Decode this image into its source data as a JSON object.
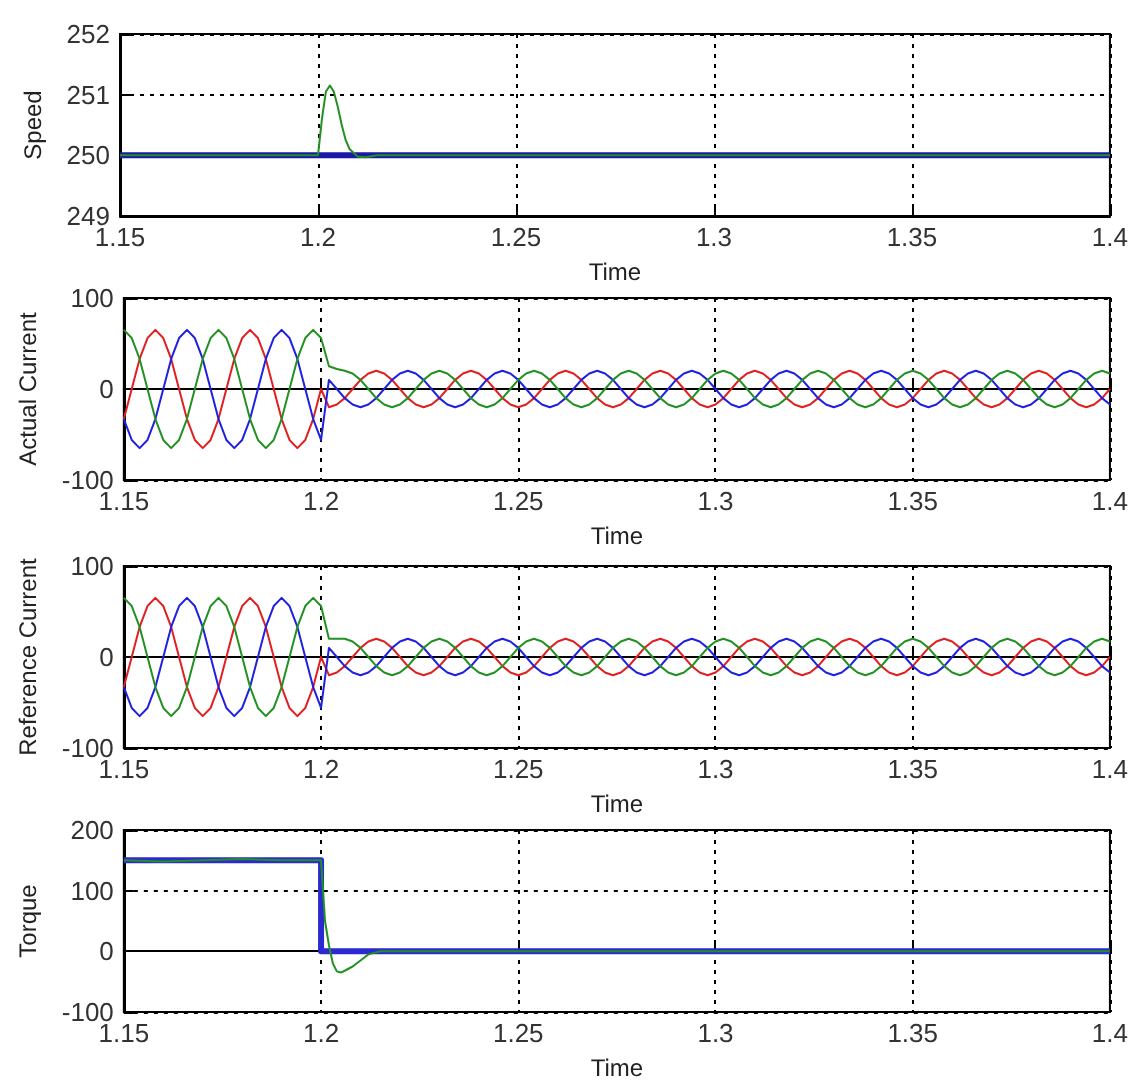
{
  "chart_data": [
    {
      "type": "line",
      "xlabel": "Time",
      "ylabel": "Speed",
      "xlim": [
        1.15,
        1.4
      ],
      "xticks": [
        1.15,
        1.2,
        1.25,
        1.3,
        1.35,
        1.4
      ],
      "ylim": [
        249,
        252
      ],
      "yticks": [
        249,
        250,
        251,
        252
      ],
      "grid": true,
      "series": [
        {
          "color": "#1a1aa6",
          "x": [
            1.15,
            1.4
          ],
          "values": [
            250,
            250
          ]
        },
        {
          "color": "#229022",
          "x": [
            1.15,
            1.2,
            1.201,
            1.202,
            1.203,
            1.204,
            1.205,
            1.206,
            1.207,
            1.208,
            1.21,
            1.212,
            1.215,
            1.22,
            1.4
          ],
          "values": [
            250,
            250,
            250.6,
            251.05,
            251.15,
            251.05,
            250.8,
            250.5,
            250.25,
            250.1,
            249.98,
            249.97,
            250,
            250,
            250
          ]
        }
      ]
    },
    {
      "type": "line",
      "xlabel": "Time",
      "ylabel": "Actual Current",
      "xlim": [
        1.15,
        1.4
      ],
      "xticks": [
        1.15,
        1.2,
        1.25,
        1.3,
        1.35,
        1.4
      ],
      "ylim": [
        -100,
        100
      ],
      "yticks": [
        -100,
        0,
        100
      ],
      "grid": true,
      "x": [
        1.15,
        1.152,
        1.154,
        1.156,
        1.158,
        1.16,
        1.162,
        1.164,
        1.166,
        1.168,
        1.17,
        1.172,
        1.174,
        1.176,
        1.178,
        1.18,
        1.182,
        1.184,
        1.186,
        1.188,
        1.19,
        1.192,
        1.194,
        1.196,
        1.198,
        1.2,
        1.202,
        1.204,
        1.206,
        1.208,
        1.21,
        1.212,
        1.214,
        1.216,
        1.218,
        1.22,
        1.222,
        1.224,
        1.226,
        1.228,
        1.23,
        1.232,
        1.234,
        1.236,
        1.238,
        1.24,
        1.242,
        1.244,
        1.246,
        1.248,
        1.25,
        1.252,
        1.254,
        1.256,
        1.258,
        1.26,
        1.262,
        1.264,
        1.266,
        1.268,
        1.27,
        1.272,
        1.274,
        1.276,
        1.278,
        1.28,
        1.282,
        1.284,
        1.286,
        1.288,
        1.29,
        1.292,
        1.294,
        1.296,
        1.298,
        1.3,
        1.302,
        1.304,
        1.306,
        1.308,
        1.31,
        1.312,
        1.314,
        1.316,
        1.318,
        1.32,
        1.322,
        1.324,
        1.326,
        1.328,
        1.33,
        1.332,
        1.334,
        1.336,
        1.338,
        1.34,
        1.342,
        1.344,
        1.346,
        1.348,
        1.35,
        1.352,
        1.354,
        1.356,
        1.358,
        1.36,
        1.362,
        1.364,
        1.366,
        1.368,
        1.37,
        1.372,
        1.374,
        1.376,
        1.378,
        1.38,
        1.382,
        1.384,
        1.386,
        1.388,
        1.39,
        1.392,
        1.394,
        1.396,
        1.398,
        1.4
      ],
      "series": [
        {
          "color": "#e02020",
          "values": [
            -33,
            0,
            33,
            56,
            65,
            56,
            33,
            0,
            -33,
            -56,
            -65,
            -56,
            -33,
            0,
            33,
            56,
            65,
            56,
            33,
            0,
            -33,
            -56,
            -65,
            -56,
            -33,
            0,
            -20,
            -17,
            -10,
            0,
            10,
            17,
            20,
            17,
            10,
            0,
            -10,
            -17,
            -20,
            -17,
            -10,
            0,
            10,
            17,
            20,
            17,
            10,
            0,
            -10,
            -17,
            -20,
            -17,
            -10,
            0,
            10,
            17,
            20,
            17,
            10,
            0,
            -10,
            -17,
            -20,
            -17,
            -10,
            0,
            10,
            17,
            20,
            17,
            10,
            0,
            -10,
            -17,
            -20,
            -17,
            -10,
            0,
            10,
            17,
            20,
            17,
            10,
            0,
            -10,
            -17,
            -20,
            -17,
            -10,
            0,
            10,
            17,
            20,
            17,
            10,
            0,
            -10,
            -17,
            -20,
            -17,
            -10,
            0,
            10,
            17,
            20,
            17,
            10,
            0,
            -10,
            -17,
            -20,
            -17,
            -10,
            0,
            10,
            17,
            20,
            17,
            10,
            0,
            -10,
            -17,
            -20,
            -17,
            -10,
            0
          ]
        },
        {
          "color": "#2020e0",
          "values": [
            -33,
            -56,
            -65,
            -56,
            -33,
            0,
            33,
            56,
            65,
            56,
            33,
            0,
            -33,
            -56,
            -65,
            -56,
            -33,
            0,
            33,
            56,
            65,
            56,
            33,
            0,
            -33,
            -56,
            10,
            0,
            -10,
            -17,
            -20,
            -17,
            -10,
            0,
            10,
            17,
            20,
            17,
            10,
            0,
            -10,
            -17,
            -20,
            -17,
            -10,
            0,
            10,
            17,
            20,
            17,
            10,
            0,
            -10,
            -17,
            -20,
            -17,
            -10,
            0,
            10,
            17,
            20,
            17,
            10,
            0,
            -10,
            -17,
            -20,
            -17,
            -10,
            0,
            10,
            17,
            20,
            17,
            10,
            0,
            -10,
            -17,
            -20,
            -17,
            -10,
            0,
            10,
            17,
            20,
            17,
            10,
            0,
            -10,
            -17,
            -20,
            -17,
            -10,
            0,
            10,
            17,
            20,
            17,
            10,
            0,
            -10,
            -17,
            -20,
            -17,
            -10,
            0,
            10,
            17,
            20,
            17,
            10,
            0,
            -10,
            -17,
            -20,
            -17,
            -10,
            0,
            10,
            17,
            20,
            17,
            10,
            0,
            -10,
            -17
          ]
        },
        {
          "color": "#229022",
          "values": [
            65,
            56,
            33,
            0,
            -33,
            -56,
            -65,
            -56,
            -33,
            0,
            33,
            56,
            65,
            56,
            33,
            0,
            -33,
            -56,
            -65,
            -56,
            -33,
            0,
            33,
            56,
            65,
            56,
            25,
            22,
            20,
            17,
            10,
            0,
            -10,
            -17,
            -20,
            -17,
            -10,
            0,
            10,
            17,
            20,
            17,
            10,
            0,
            -10,
            -17,
            -20,
            -17,
            -10,
            0,
            10,
            17,
            20,
            17,
            10,
            0,
            -10,
            -17,
            -20,
            -17,
            -10,
            0,
            10,
            17,
            20,
            17,
            10,
            0,
            -10,
            -17,
            -20,
            -17,
            -10,
            0,
            10,
            17,
            20,
            17,
            10,
            0,
            -10,
            -17,
            -20,
            -17,
            -10,
            0,
            10,
            17,
            20,
            17,
            10,
            0,
            -10,
            -17,
            -20,
            -17,
            -10,
            0,
            10,
            17,
            20,
            17,
            10,
            0,
            -10,
            -17,
            -20,
            -17,
            -10,
            0,
            10,
            17,
            20,
            17,
            10,
            0,
            -10,
            -17,
            -20,
            -17,
            -10,
            0,
            10,
            17,
            20,
            17
          ]
        }
      ]
    },
    {
      "type": "line",
      "xlabel": "Time",
      "ylabel": "Reference Current",
      "xlim": [
        1.15,
        1.4
      ],
      "xticks": [
        1.15,
        1.2,
        1.25,
        1.3,
        1.35,
        1.4
      ],
      "ylim": [
        -100,
        100
      ],
      "yticks": [
        -100,
        0,
        100
      ],
      "grid": true,
      "x": [
        1.15,
        1.152,
        1.154,
        1.156,
        1.158,
        1.16,
        1.162,
        1.164,
        1.166,
        1.168,
        1.17,
        1.172,
        1.174,
        1.176,
        1.178,
        1.18,
        1.182,
        1.184,
        1.186,
        1.188,
        1.19,
        1.192,
        1.194,
        1.196,
        1.198,
        1.2,
        1.202,
        1.204,
        1.206,
        1.208,
        1.21,
        1.212,
        1.214,
        1.216,
        1.218,
        1.22,
        1.222,
        1.224,
        1.226,
        1.228,
        1.23,
        1.232,
        1.234,
        1.236,
        1.238,
        1.24,
        1.242,
        1.244,
        1.246,
        1.248,
        1.25,
        1.252,
        1.254,
        1.256,
        1.258,
        1.26,
        1.262,
        1.264,
        1.266,
        1.268,
        1.27,
        1.272,
        1.274,
        1.276,
        1.278,
        1.28,
        1.282,
        1.284,
        1.286,
        1.288,
        1.29,
        1.292,
        1.294,
        1.296,
        1.298,
        1.3,
        1.302,
        1.304,
        1.306,
        1.308,
        1.31,
        1.312,
        1.314,
        1.316,
        1.318,
        1.32,
        1.322,
        1.324,
        1.326,
        1.328,
        1.33,
        1.332,
        1.334,
        1.336,
        1.338,
        1.34,
        1.342,
        1.344,
        1.346,
        1.348,
        1.35,
        1.352,
        1.354,
        1.356,
        1.358,
        1.36,
        1.362,
        1.364,
        1.366,
        1.368,
        1.37,
        1.372,
        1.374,
        1.376,
        1.378,
        1.38,
        1.382,
        1.384,
        1.386,
        1.388,
        1.39,
        1.392,
        1.394,
        1.396,
        1.398,
        1.4
      ],
      "series": [
        {
          "color": "#e02020",
          "values": [
            -33,
            0,
            33,
            56,
            65,
            56,
            33,
            0,
            -33,
            -56,
            -65,
            -56,
            -33,
            0,
            33,
            56,
            65,
            56,
            33,
            0,
            -33,
            -56,
            -65,
            -56,
            -33,
            0,
            -20,
            -17,
            -10,
            0,
            10,
            17,
            20,
            17,
            10,
            0,
            -10,
            -17,
            -20,
            -17,
            -10,
            0,
            10,
            17,
            20,
            17,
            10,
            0,
            -10,
            -17,
            -20,
            -17,
            -10,
            0,
            10,
            17,
            20,
            17,
            10,
            0,
            -10,
            -17,
            -20,
            -17,
            -10,
            0,
            10,
            17,
            20,
            17,
            10,
            0,
            -10,
            -17,
            -20,
            -17,
            -10,
            0,
            10,
            17,
            20,
            17,
            10,
            0,
            -10,
            -17,
            -20,
            -17,
            -10,
            0,
            10,
            17,
            20,
            17,
            10,
            0,
            -10,
            -17,
            -20,
            -17,
            -10,
            0,
            10,
            17,
            20,
            17,
            10,
            0,
            -10,
            -17,
            -20,
            -17,
            -10,
            0,
            10,
            17,
            20,
            17,
            10,
            0,
            -10,
            -17,
            -20,
            -17,
            -10,
            0
          ]
        },
        {
          "color": "#2020e0",
          "values": [
            -33,
            -56,
            -65,
            -56,
            -33,
            0,
            33,
            56,
            65,
            56,
            33,
            0,
            -33,
            -56,
            -65,
            -56,
            -33,
            0,
            33,
            56,
            65,
            56,
            33,
            0,
            -33,
            -56,
            10,
            0,
            -10,
            -17,
            -20,
            -17,
            -10,
            0,
            10,
            17,
            20,
            17,
            10,
            0,
            -10,
            -17,
            -20,
            -17,
            -10,
            0,
            10,
            17,
            20,
            17,
            10,
            0,
            -10,
            -17,
            -20,
            -17,
            -10,
            0,
            10,
            17,
            20,
            17,
            10,
            0,
            -10,
            -17,
            -20,
            -17,
            -10,
            0,
            10,
            17,
            20,
            17,
            10,
            0,
            -10,
            -17,
            -20,
            -17,
            -10,
            0,
            10,
            17,
            20,
            17,
            10,
            0,
            -10,
            -17,
            -20,
            -17,
            -10,
            0,
            10,
            17,
            20,
            17,
            10,
            0,
            -10,
            -17,
            -20,
            -17,
            -10,
            0,
            10,
            17,
            20,
            17,
            10,
            0,
            -10,
            -17,
            -20,
            -17,
            -10,
            0,
            10,
            17,
            20,
            17,
            10,
            0,
            -10,
            -17
          ]
        },
        {
          "color": "#229022",
          "values": [
            65,
            56,
            33,
            0,
            -33,
            -56,
            -65,
            -56,
            -33,
            0,
            33,
            56,
            65,
            56,
            33,
            0,
            -33,
            -56,
            -65,
            -56,
            -33,
            0,
            33,
            56,
            65,
            56,
            20,
            20,
            20,
            17,
            10,
            0,
            -10,
            -17,
            -20,
            -17,
            -10,
            0,
            10,
            17,
            20,
            17,
            10,
            0,
            -10,
            -17,
            -20,
            -17,
            -10,
            0,
            10,
            17,
            20,
            17,
            10,
            0,
            -10,
            -17,
            -20,
            -17,
            -10,
            0,
            10,
            17,
            20,
            17,
            10,
            0,
            -10,
            -17,
            -20,
            -17,
            -10,
            0,
            10,
            17,
            20,
            17,
            10,
            0,
            -10,
            -17,
            -20,
            -17,
            -10,
            0,
            10,
            17,
            20,
            17,
            10,
            0,
            -10,
            -17,
            -20,
            -17,
            -10,
            0,
            10,
            17,
            20,
            17,
            10,
            0,
            -10,
            -17,
            -20,
            -17,
            -10,
            0,
            10,
            17,
            20,
            17,
            10,
            0,
            -10,
            -17,
            -20,
            -17,
            -10,
            0,
            10,
            17,
            20,
            17
          ]
        }
      ]
    },
    {
      "type": "line",
      "xlabel": "Time",
      "ylabel": "Torque",
      "xlim": [
        1.15,
        1.4
      ],
      "xticks": [
        1.15,
        1.2,
        1.25,
        1.3,
        1.35,
        1.4
      ],
      "ylim": [
        -100,
        200
      ],
      "yticks": [
        -100,
        0,
        100,
        200
      ],
      "grid": true,
      "series": [
        {
          "color": "#2a2ad0",
          "x": [
            1.15,
            1.2,
            1.2,
            1.4
          ],
          "values": [
            150,
            150,
            0,
            0
          ]
        },
        {
          "color": "#229022",
          "x": [
            1.15,
            1.16,
            1.17,
            1.18,
            1.19,
            1.2,
            1.2005,
            1.201,
            1.202,
            1.203,
            1.204,
            1.205,
            1.206,
            1.208,
            1.21,
            1.212,
            1.215,
            1.22,
            1.4
          ],
          "values": [
            150,
            148,
            150,
            152,
            150,
            150,
            100,
            50,
            10,
            -20,
            -33,
            -35,
            -32,
            -25,
            -15,
            -5,
            0,
            0,
            0
          ]
        }
      ]
    }
  ]
}
